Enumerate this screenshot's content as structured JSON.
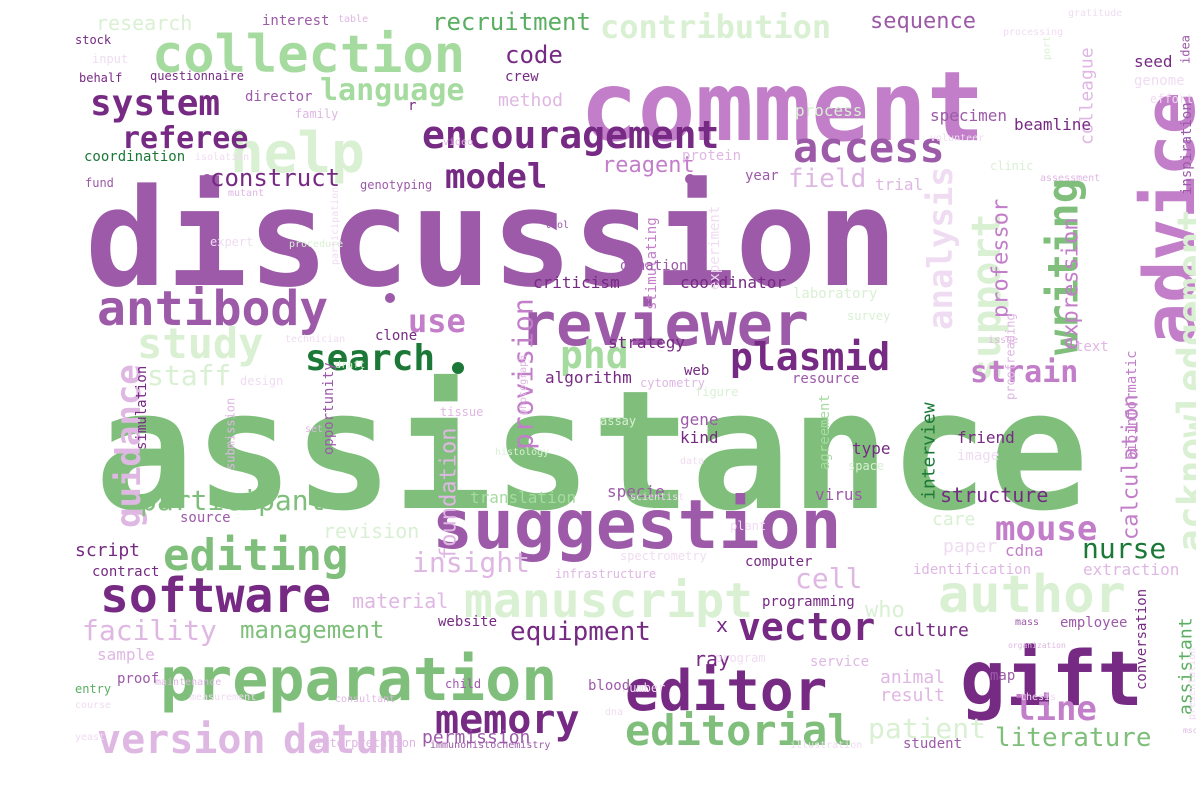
{
  "palette": {
    "dark_purple": "#762a83",
    "purple": "#9c5aa8",
    "mauve": "#c27ec9",
    "lilac": "#dfb7e3",
    "light_lilac": "#f0dcf2",
    "pale_green": "#d9f0d3",
    "light_green": "#a6dba0",
    "green": "#7fbf7b",
    "mid_green": "#5aae61",
    "dark_green": "#1b7837"
  },
  "words": [
    {
      "text": "assistance",
      "color": "green"
    },
    {
      "text": "discussion",
      "color": "purple"
    },
    {
      "text": "comment",
      "color": "mauve"
    },
    {
      "text": "advice",
      "color": "mauve"
    },
    {
      "text": "suggestion",
      "color": "purple"
    },
    {
      "text": "reviewer",
      "color": "purple"
    },
    {
      "text": "preparation",
      "color": "green"
    },
    {
      "text": "gift",
      "color": "dark_purple"
    },
    {
      "text": "author",
      "color": "pale_green"
    },
    {
      "text": "editor",
      "color": "dark_purple"
    },
    {
      "text": "collection",
      "color": "light_green"
    },
    {
      "text": "antibody",
      "color": "purple"
    },
    {
      "text": "software",
      "color": "dark_purple"
    },
    {
      "text": "help",
      "color": "pale_green"
    },
    {
      "text": "manuscript",
      "color": "pale_green"
    },
    {
      "text": "editing",
      "color": "green"
    },
    {
      "text": "encouragement",
      "color": "dark_purple"
    },
    {
      "text": "acknowledgement",
      "color": "pale_green"
    },
    {
      "text": "editorial",
      "color": "green"
    },
    {
      "text": "writing",
      "color": "green"
    },
    {
      "text": "access",
      "color": "purple"
    },
    {
      "text": "memory",
      "color": "dark_purple"
    },
    {
      "text": "version",
      "color": "lilac"
    },
    {
      "text": "datum",
      "color": "lilac"
    },
    {
      "text": "study",
      "color": "pale_green"
    },
    {
      "text": "vector",
      "color": "dark_purple"
    },
    {
      "text": "plasmid",
      "color": "dark_purple"
    },
    {
      "text": "search",
      "color": "dark_green"
    },
    {
      "text": "support",
      "color": "pale_green"
    },
    {
      "text": "guidance",
      "color": "lilac"
    },
    {
      "text": "phd",
      "color": "light_green"
    },
    {
      "text": "system",
      "color": "dark_purple"
    },
    {
      "text": "mouse",
      "color": "mauve"
    },
    {
      "text": "model",
      "color": "dark_purple"
    },
    {
      "text": "line",
      "color": "mauve"
    },
    {
      "text": "analysis",
      "color": "light_lilac"
    },
    {
      "text": "contribution",
      "color": "pale_green"
    },
    {
      "text": "language",
      "color": "light_green"
    },
    {
      "text": "use",
      "color": "mauve"
    },
    {
      "text": "participant",
      "color": "green"
    },
    {
      "text": "strain",
      "color": "mauve"
    },
    {
      "text": "referee",
      "color": "dark_purple"
    },
    {
      "text": "provision",
      "color": "mauve"
    },
    {
      "text": "staff",
      "color": "pale_green"
    },
    {
      "text": "cell",
      "color": "lilac"
    },
    {
      "text": "equipment",
      "color": "dark_purple"
    },
    {
      "text": "facility",
      "color": "lilac"
    },
    {
      "text": "management",
      "color": "green"
    },
    {
      "text": "insight",
      "color": "lilac"
    },
    {
      "text": "nurse",
      "color": "dark_green"
    },
    {
      "text": "patient",
      "color": "pale_green"
    },
    {
      "text": "literature",
      "color": "green"
    },
    {
      "text": "construct",
      "color": "dark_purple"
    },
    {
      "text": "field",
      "color": "lilac"
    },
    {
      "text": "code",
      "color": "dark_purple"
    },
    {
      "text": "recruitment",
      "color": "mid_green"
    },
    {
      "text": "sequence",
      "color": "purple"
    },
    {
      "text": "reagent",
      "color": "mauve"
    },
    {
      "text": "expression",
      "color": "mauve"
    },
    {
      "text": "calculation",
      "color": "mauve"
    },
    {
      "text": "professor",
      "color": "mauve"
    },
    {
      "text": "structure",
      "color": "dark_purple"
    },
    {
      "text": "foundation",
      "color": "lilac"
    },
    {
      "text": "who",
      "color": "pale_green"
    },
    {
      "text": "revision",
      "color": "pale_green"
    },
    {
      "text": "material",
      "color": "lilac"
    },
    {
      "text": "ray",
      "color": "dark_purple"
    },
    {
      "text": "x",
      "color": "dark_purple"
    },
    {
      "text": "permission",
      "color": "purple"
    },
    {
      "text": "assistant",
      "color": "mid_green"
    },
    {
      "text": "research",
      "color": "pale_green"
    },
    {
      "text": "interview",
      "color": "dark_green"
    },
    {
      "text": "culture",
      "color": "dark_purple"
    },
    {
      "text": "colleague",
      "color": "lilac"
    },
    {
      "text": "method",
      "color": "lilac"
    },
    {
      "text": "criticism",
      "color": "dark_purple"
    },
    {
      "text": "coordinator",
      "color": "dark_purple"
    },
    {
      "text": "strategy",
      "color": "dark_purple"
    },
    {
      "text": "algorithm",
      "color": "dark_purple"
    },
    {
      "text": "paper",
      "color": "light_lilac"
    },
    {
      "text": "care",
      "color": "pale_green"
    },
    {
      "text": "animal",
      "color": "lilac"
    },
    {
      "text": "result",
      "color": "lilac"
    },
    {
      "text": "translation",
      "color": "light_green"
    },
    {
      "text": "specie",
      "color": "purple"
    },
    {
      "text": "cdna",
      "color": "mauve"
    },
    {
      "text": "script",
      "color": "dark_purple"
    },
    {
      "text": "seed",
      "color": "dark_purple"
    },
    {
      "text": "genome",
      "color": "light_lilac"
    },
    {
      "text": "specimen",
      "color": "purple"
    },
    {
      "text": "beamline",
      "color": "dark_purple"
    },
    {
      "text": "process",
      "color": "pale_green"
    },
    {
      "text": "trial",
      "color": "lilac"
    },
    {
      "text": "clinic",
      "color": "pale_green"
    },
    {
      "text": "inspiration",
      "color": "purple"
    },
    {
      "text": "bioinformatic",
      "color": "mauve"
    },
    {
      "text": "conversation",
      "color": "dark_purple"
    },
    {
      "text": "extraction",
      "color": "lilac"
    },
    {
      "text": "identification",
      "color": "lilac"
    },
    {
      "text": "computer",
      "color": "dark_purple"
    },
    {
      "text": "programming",
      "color": "dark_purple"
    },
    {
      "text": "website",
      "color": "dark_purple"
    },
    {
      "text": "opportunity",
      "color": "purple"
    },
    {
      "text": "simulation",
      "color": "dark_purple"
    },
    {
      "text": "submission",
      "color": "lilac"
    },
    {
      "text": "stimulating",
      "color": "mauve"
    },
    {
      "text": "laboratory",
      "color": "pale_green"
    },
    {
      "text": "resource",
      "color": "purple"
    },
    {
      "text": "gene",
      "color": "purple"
    },
    {
      "text": "kind",
      "color": "dark_purple"
    },
    {
      "text": "type",
      "color": "dark_purple"
    },
    {
      "text": "friend",
      "color": "dark_purple"
    },
    {
      "text": "image",
      "color": "light_lilac"
    },
    {
      "text": "space",
      "color": "pale_green"
    },
    {
      "text": "virus",
      "color": "purple"
    },
    {
      "text": "agreement",
      "color": "light_green"
    },
    {
      "text": "donation",
      "color": "purple"
    },
    {
      "text": "web",
      "color": "dark_purple"
    },
    {
      "text": "clone",
      "color": "dark_purple"
    },
    {
      "text": "crew",
      "color": "dark_purple"
    },
    {
      "text": "r",
      "color": "dark_purple"
    },
    {
      "text": "protein",
      "color": "lilac"
    },
    {
      "text": "year",
      "color": "purple"
    },
    {
      "text": "genotyping",
      "color": "purple"
    },
    {
      "text": "mutant",
      "color": "lilac"
    },
    {
      "text": "director",
      "color": "purple"
    },
    {
      "text": "family",
      "color": "lilac"
    },
    {
      "text": "coordination",
      "color": "dark_green"
    },
    {
      "text": "fund",
      "color": "purple"
    },
    {
      "text": "interest",
      "color": "purple"
    },
    {
      "text": "stock",
      "color": "dark_purple"
    },
    {
      "text": "input",
      "color": "light_lilac"
    },
    {
      "text": "behalf",
      "color": "dark_purple"
    },
    {
      "text": "questionnaire",
      "color": "dark_purple"
    },
    {
      "text": "table",
      "color": "lilac"
    },
    {
      "text": "gratitude",
      "color": "light_lilac"
    },
    {
      "text": "idea",
      "color": "purple"
    },
    {
      "text": "effort",
      "color": "light_lilac"
    },
    {
      "text": "port",
      "color": "pale_green"
    },
    {
      "text": "isolation",
      "color": "light_lilac"
    },
    {
      "text": "video",
      "color": "lilac"
    },
    {
      "text": "tool",
      "color": "purple"
    },
    {
      "text": "expert",
      "color": "light_lilac"
    },
    {
      "text": "procedure",
      "color": "pale_green"
    },
    {
      "text": "participation",
      "color": "light_lilac"
    },
    {
      "text": "technician",
      "color": "light_lilac"
    },
    {
      "text": "draft",
      "color": "pale_green"
    },
    {
      "text": "design",
      "color": "light_lilac"
    },
    {
      "text": "tissue",
      "color": "lilac"
    },
    {
      "text": "photograph",
      "color": "lilac"
    },
    {
      "text": "figure",
      "color": "pale_green"
    },
    {
      "text": "assay",
      "color": "pale_green"
    },
    {
      "text": "histology",
      "color": "pale_green"
    },
    {
      "text": "data",
      "color": "light_lilac"
    },
    {
      "text": "set",
      "color": "lilac"
    },
    {
      "text": "scientist",
      "color": "light_lilac"
    },
    {
      "text": "source",
      "color": "purple"
    },
    {
      "text": "plant",
      "color": "light_lilac"
    },
    {
      "text": "spectrometry",
      "color": "light_lilac"
    },
    {
      "text": "infrastructure",
      "color": "lilac"
    },
    {
      "text": "contract",
      "color": "dark_purple"
    },
    {
      "text": "proof",
      "color": "purple"
    },
    {
      "text": "maintenance",
      "color": "lilac"
    },
    {
      "text": "child",
      "color": "purple"
    },
    {
      "text": "program",
      "color": "light_lilac"
    },
    {
      "text": "number",
      "color": "light_lilac"
    },
    {
      "text": "sample",
      "color": "lilac"
    },
    {
      "text": "entry",
      "color": "mid_green"
    },
    {
      "text": "measurement",
      "color": "light_lilac"
    },
    {
      "text": "course",
      "color": "light_lilac"
    },
    {
      "text": "consultant",
      "color": "lilac"
    },
    {
      "text": "blood",
      "color": "purple"
    },
    {
      "text": "dna",
      "color": "light_lilac"
    },
    {
      "text": "interpretation",
      "color": "lilac"
    },
    {
      "text": "immunohistochemistry",
      "color": "purple"
    },
    {
      "text": "illustration",
      "color": "light_lilac"
    },
    {
      "text": "thesis",
      "color": "light_lilac"
    },
    {
      "text": "map",
      "color": "purple"
    },
    {
      "text": "service",
      "color": "lilac"
    },
    {
      "text": "employee",
      "color": "purple"
    },
    {
      "text": "mass",
      "color": "purple"
    },
    {
      "text": "organization",
      "color": "lilac"
    },
    {
      "text": "presentation",
      "color": "light_lilac"
    },
    {
      "text": "msc",
      "color": "lilac"
    },
    {
      "text": "yeast",
      "color": "light_lilac"
    },
    {
      "text": "student",
      "color": "purple"
    },
    {
      "text": "text",
      "color": "lilac"
    },
    {
      "text": "issue",
      "color": "lilac"
    },
    {
      "text": "survey",
      "color": "pale_green"
    },
    {
      "text": "proofreading",
      "color": "lilac"
    },
    {
      "text": "cytometry",
      "color": "lilac"
    },
    {
      "text": "experiment",
      "color": "light_lilac"
    },
    {
      "text": "assessment",
      "color": "lilac"
    },
    {
      "text": "processing",
      "color": "light_lilac"
    },
    {
      "text": "volunteer",
      "color": "light_lilac"
    }
  ]
}
